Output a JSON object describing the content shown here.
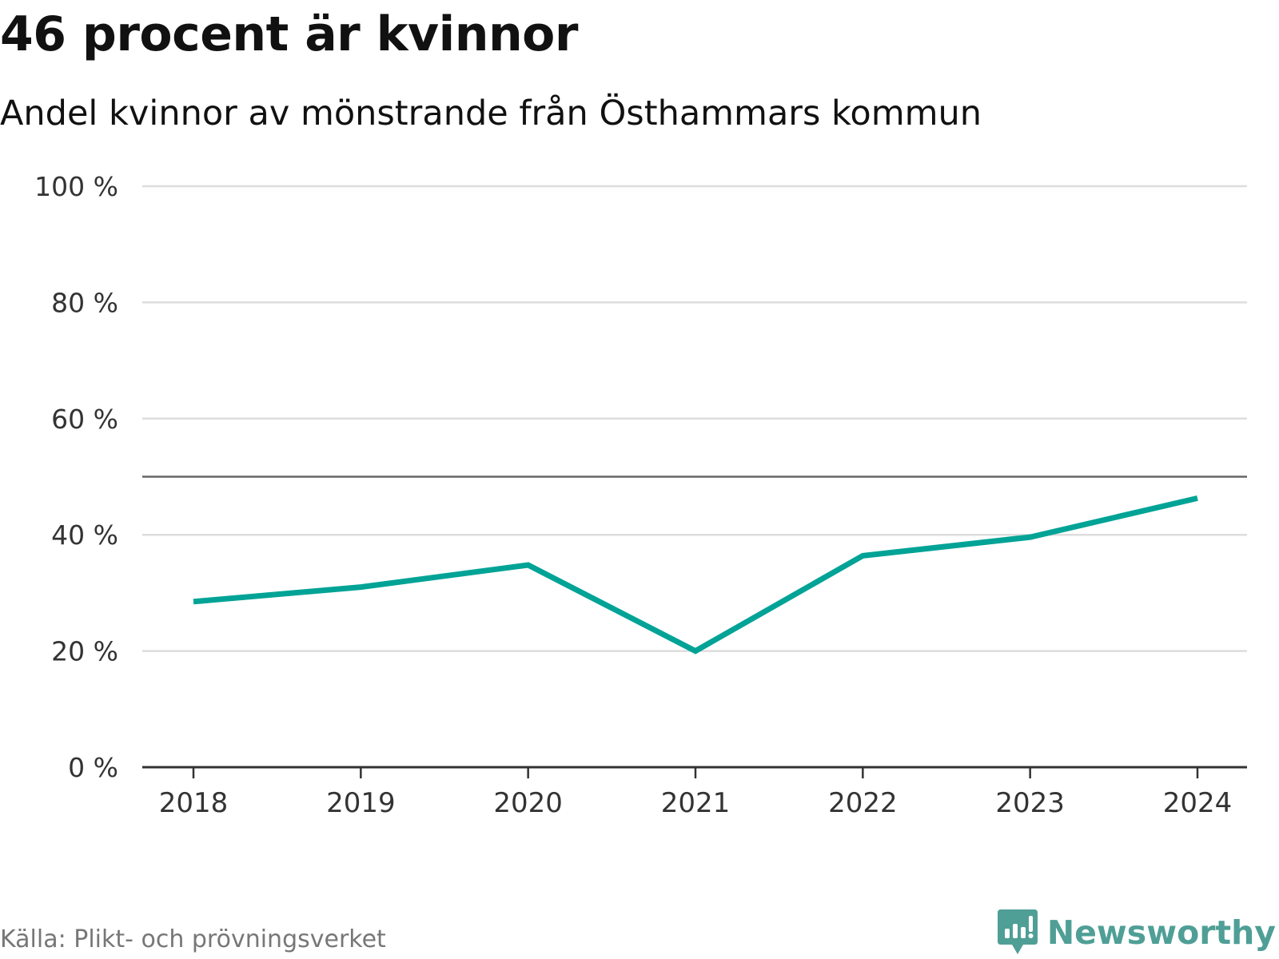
{
  "title": "46 procent är kvinnor",
  "subtitle": "Andel kvinnor av mönstrande från Östhammars kommun",
  "source": "Källa: Plikt- och prövningsverket",
  "brand": {
    "name": "Newsworthy",
    "icon": "newsworthy-logo-icon",
    "color": "#4f9f96"
  },
  "colors": {
    "line": "#00a396",
    "grid": "#dddddd",
    "axis": "#333333",
    "reference": "#666666"
  },
  "chart_data": {
    "type": "line",
    "title": "46 procent är kvinnor",
    "subtitle": "Andel kvinnor av mönstrande från Östhammars kommun",
    "xlabel": "",
    "ylabel": "",
    "categories": [
      "2018",
      "2019",
      "2020",
      "2021",
      "2022",
      "2023",
      "2024"
    ],
    "series": [
      {
        "name": "Andel kvinnor",
        "values": [
          28.5,
          31,
          34.8,
          20,
          36.4,
          39.6,
          46.3
        ]
      }
    ],
    "ylim": [
      0,
      100
    ],
    "yticks": [
      0,
      20,
      40,
      60,
      80,
      100
    ],
    "ytick_labels": [
      "0 %",
      "20 %",
      "40 %",
      "60 %",
      "80 %",
      "100 %"
    ],
    "reference_line": 50,
    "grid": true
  }
}
